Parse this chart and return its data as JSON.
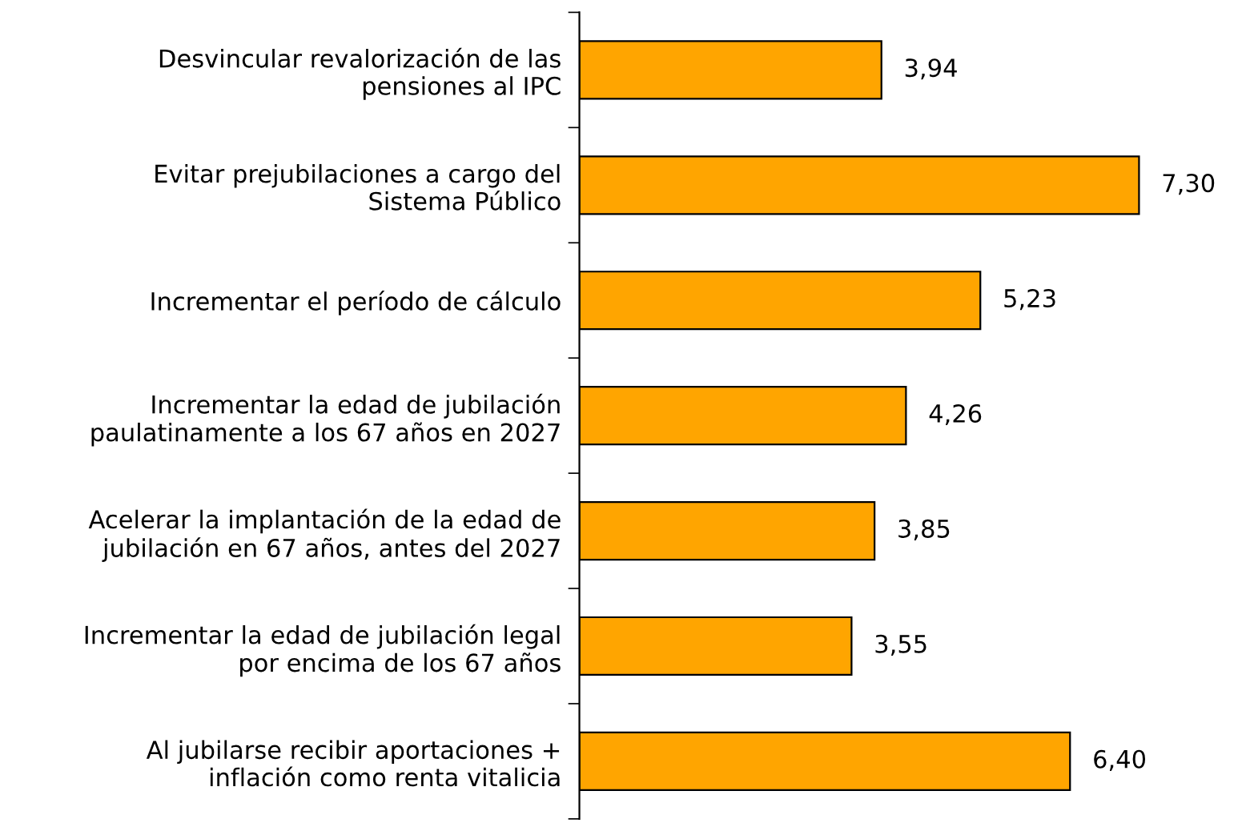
{
  "chart_data": {
    "type": "bar",
    "orientation": "horizontal",
    "categories": [
      "Desvincular revalorización de las\npensiones al IPC",
      "Evitar prejubilaciones a cargo del\nSistema Público",
      "Incrementar el período de cálculo",
      "Incrementar la edad de jubilación\npaulatinamente a los 67 años en 2027",
      "Acelerar la implantación de la edad de\njubilación en 67 años, antes del 2027",
      "Incrementar la edad de jubilación legal\npor encima de los 67 años",
      "Al jubilarse recibir aportaciones +\ninflación como renta vitalicia"
    ],
    "values": [
      3.94,
      7.3,
      5.23,
      4.26,
      3.85,
      3.55,
      6.4
    ],
    "value_labels": [
      "3,94",
      "7,30",
      "5,23",
      "4,26",
      "3,85",
      "3,55",
      "6,40"
    ],
    "color": "#ffa500",
    "grid": false,
    "legend": false,
    "tick_labels": "y"
  }
}
